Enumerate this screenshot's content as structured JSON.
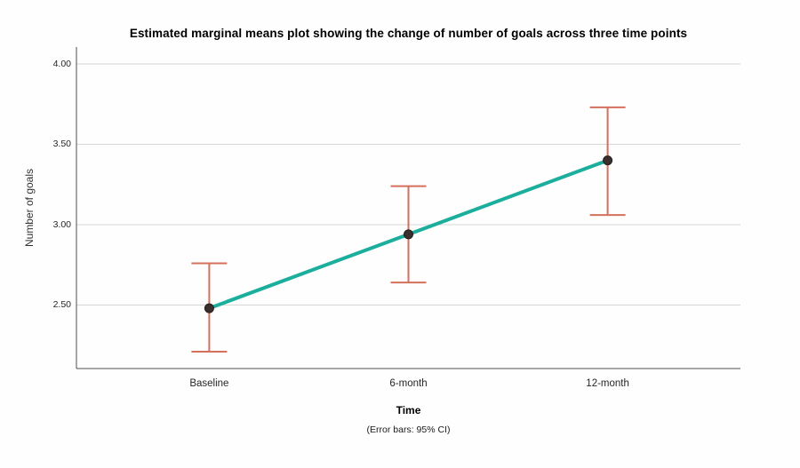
{
  "title": "Estimated marginal means plot showing the change of number of goals across three time points",
  "chart_data": {
    "type": "line",
    "title": "Estimated marginal means plot showing the change of number of goals across three time points",
    "xlabel": "Time",
    "ylabel": "Number of goals",
    "footnote": "(Error bars: 95% CI)",
    "categories": [
      "Baseline",
      "6-month",
      "12-month"
    ],
    "series": [
      {
        "name": "Estimated marginal means of number of goals",
        "values": [
          2.48,
          2.94,
          3.4
        ]
      }
    ],
    "error_bars": {
      "label": "95% CI",
      "low": [
        2.21,
        2.64,
        3.06
      ],
      "high": [
        2.76,
        3.24,
        3.73
      ]
    },
    "yticks": [
      2.5,
      3.0,
      3.5,
      4.0
    ],
    "ytick_labels": [
      "2.50",
      "3.00",
      "3.50",
      "4.00"
    ],
    "ylim": [
      2.105,
      4.105
    ],
    "grid": "horizontal",
    "legend": "none",
    "colors": {
      "line": "#1cae9c",
      "error_bar": "#d4705c",
      "marker": "#3a2f2d",
      "marker_edge": "#241c1b",
      "gridline": "#d6d6d6",
      "axis": "#4d4d4d",
      "background": "#fefefe"
    }
  }
}
